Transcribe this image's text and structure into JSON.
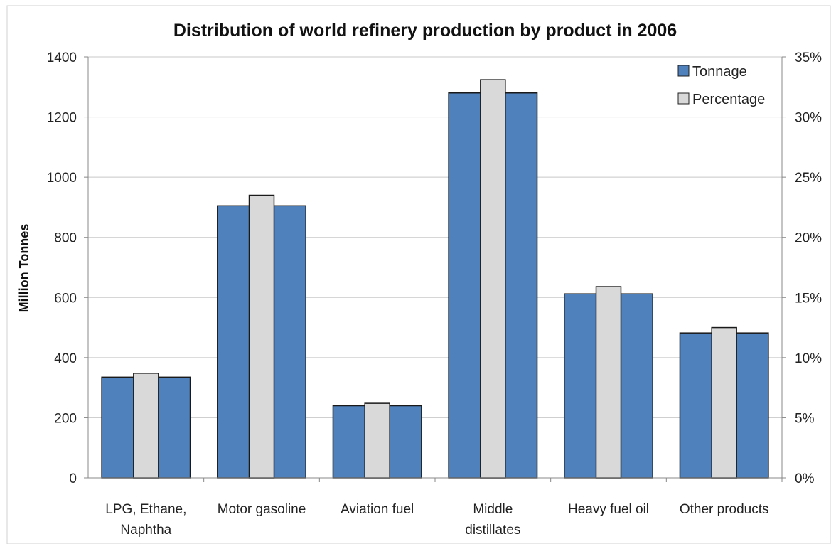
{
  "chart_data": {
    "type": "bar",
    "title": "Distribution of world refinery production by product in 2006",
    "ylabel": "Million Tonnes",
    "y2label": "",
    "xlabel": "",
    "categories": [
      [
        "LPG, Ethane,",
        "Naphtha"
      ],
      [
        "Motor gasoline"
      ],
      [
        "Aviation fuel"
      ],
      [
        "Middle",
        "distillates"
      ],
      [
        "Heavy fuel oil"
      ],
      [
        "Other products"
      ]
    ],
    "series": [
      {
        "name": "Tonnage",
        "axis": "left",
        "color": "#4f81bd",
        "values": [
          335,
          905,
          240,
          1280,
          612,
          482
        ]
      },
      {
        "name": "Percentage",
        "axis": "right",
        "color": "#d9d9d9",
        "values": [
          8.7,
          23.5,
          6.2,
          33.1,
          15.9,
          12.5
        ]
      }
    ],
    "ylim": [
      0,
      1400
    ],
    "y2lim": [
      0,
      35
    ],
    "yticks": [
      "0",
      "200",
      "400",
      "600",
      "800",
      "1000",
      "1200",
      "1400"
    ],
    "y2ticks": [
      "0%",
      "5%",
      "10%",
      "15%",
      "20%",
      "25%",
      "30%",
      "35%"
    ],
    "grid": "horizontal",
    "legend": "top-right"
  }
}
